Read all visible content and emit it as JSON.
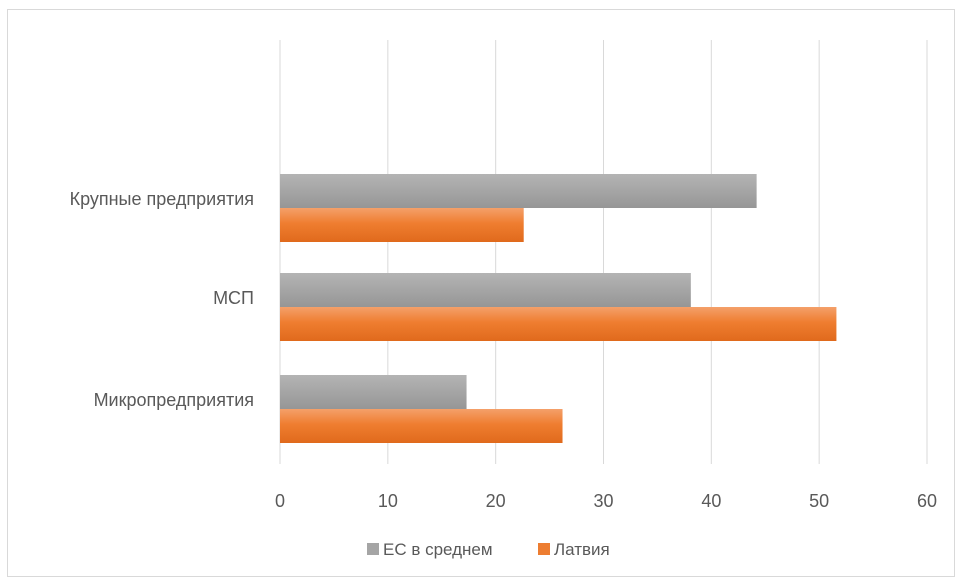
{
  "chart_data": {
    "type": "bar",
    "orientation": "horizontal",
    "categories": [
      "Крупные предприятия",
      "МСП",
      "Микропредприятия"
    ],
    "series": [
      {
        "name": "ЕС в среднем",
        "values": [
          44.2,
          38.1,
          17.3
        ],
        "color": "#a5a5a5"
      },
      {
        "name": "Латвия",
        "values": [
          22.6,
          51.6,
          26.2
        ],
        "color": "#ed7d31"
      }
    ],
    "xlim": [
      0,
      60
    ],
    "xticks": [
      "0",
      "10",
      "20",
      "30",
      "40",
      "50",
      "60"
    ],
    "grid": true,
    "legend": "bottom",
    "title": "",
    "xlabel": "",
    "ylabel": ""
  }
}
